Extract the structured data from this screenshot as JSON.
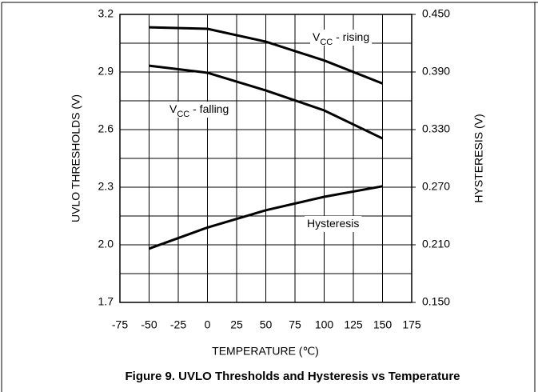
{
  "chart_data": {
    "type": "line",
    "title": "Figure 9. UVLO Thresholds and Hysteresis vs Temperature",
    "xlabel": "TEMPERATURE (℃)",
    "ylabel": "UVLO THRESHOLDS (V)",
    "y2label": "HYSTERESIS (V)",
    "x": [
      -50,
      0,
      50,
      100,
      150
    ],
    "series": [
      {
        "label": [
          "V",
          "CC",
          " - rising"
        ],
        "color": "#000000",
        "values": [
          3.133,
          3.125,
          3.058,
          2.96,
          2.84
        ]
      },
      {
        "label": [
          "V",
          "CC",
          " - falling"
        ],
        "color": "#000000",
        "values": [
          2.933,
          2.896,
          2.804,
          2.7,
          2.554
        ]
      },
      {
        "label": [
          "Hysteresis"
        ],
        "color": "#000000",
        "axis": "y2",
        "values": [
          0.206,
          0.228,
          0.246,
          0.26,
          0.271
        ]
      }
    ],
    "xlim": [
      -75,
      175
    ],
    "xticks": [
      -75,
      -50,
      -25,
      0,
      25,
      50,
      75,
      100,
      125,
      150,
      175
    ],
    "ylim": [
      1.7,
      3.2
    ],
    "yticks": [
      {
        "value": 1.7,
        "label": "1.7"
      },
      {
        "value": 2,
        "label": "2.0"
      },
      2.3,
      2.6,
      2.9,
      3.2
    ],
    "yminorticks": [
      1.85,
      2.15,
      2.45,
      2.75,
      3.05
    ],
    "y2lim": [
      0.15,
      0.45
    ],
    "y2ticks": [
      {
        "value": 0.15,
        "label": "0.150"
      },
      {
        "value": 0.21,
        "label": "0.210"
      },
      {
        "value": 0.27,
        "label": "0.270"
      },
      {
        "value": 0.33,
        "label": "0.330"
      },
      {
        "value": 0.39,
        "label": "0.390"
      },
      {
        "value": 0.45,
        "label": "0.450"
      }
    ],
    "grid": true
  }
}
